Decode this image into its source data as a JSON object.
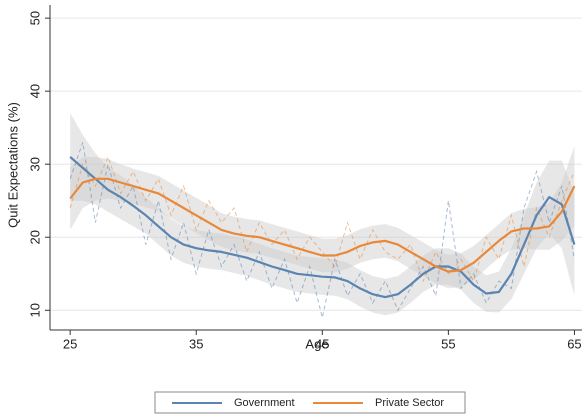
{
  "chart_data": {
    "type": "line",
    "xlabel": "Age",
    "ylabel": "Quit Expectations (%)",
    "x": [
      25,
      26,
      27,
      28,
      29,
      30,
      31,
      32,
      33,
      34,
      35,
      36,
      37,
      38,
      39,
      40,
      41,
      42,
      43,
      44,
      45,
      46,
      47,
      48,
      49,
      50,
      51,
      52,
      53,
      54,
      55,
      56,
      57,
      58,
      59,
      60,
      61,
      62,
      63,
      64,
      65
    ],
    "xlim": [
      23.4,
      65.6
    ],
    "xticks": [
      25,
      35,
      45,
      55,
      65
    ],
    "ylim": [
      7.3,
      51.8
    ],
    "yticks": [
      10,
      20,
      30,
      40,
      50
    ],
    "grid": true,
    "legend": "bottom",
    "band_color": "#c9c9c9",
    "series": [
      {
        "name": "Government",
        "color": "#5b84b1",
        "values": [
          31,
          29.5,
          28,
          26.5,
          25.5,
          24.3,
          23,
          21.5,
          20,
          19,
          18.5,
          18.2,
          18,
          17.6,
          17.2,
          16.6,
          16,
          15.5,
          15,
          14.8,
          14.6,
          14.5,
          14,
          13,
          12.2,
          11.8,
          12.2,
          13.5,
          15,
          16,
          16,
          15.3,
          13.5,
          12.3,
          12.5,
          15,
          19,
          23,
          25.5,
          24.5,
          19
        ],
        "lower": [
          25,
          25,
          24.5,
          23.5,
          22.5,
          21.5,
          20.5,
          19,
          17.5,
          16.5,
          16,
          15.7,
          15.5,
          15.1,
          14.7,
          14.1,
          13.5,
          13,
          12.5,
          12.3,
          12.1,
          12,
          11.5,
          10.5,
          9.7,
          9.3,
          9.7,
          11,
          12.5,
          13.5,
          13.5,
          12.8,
          11,
          9.8,
          9.7,
          11.5,
          15,
          18.5,
          20.5,
          18.5,
          12
        ],
        "upper": [
          37,
          34,
          31.5,
          29.5,
          28.5,
          27.1,
          25.5,
          24,
          22.5,
          21.5,
          21,
          20.7,
          20.5,
          20.1,
          19.7,
          19.1,
          18.5,
          18,
          17.5,
          17.3,
          17.1,
          17,
          16.5,
          15.5,
          14.7,
          14.3,
          14.7,
          16,
          17.5,
          18.5,
          18.5,
          17.8,
          16,
          14.8,
          15.3,
          18.5,
          23,
          27.5,
          30.5,
          30.5,
          26
        ],
        "raw": [
          28,
          33,
          22,
          30,
          24,
          27,
          19,
          25,
          17,
          22,
          15,
          21,
          16,
          19,
          14,
          18,
          13,
          17,
          11,
          16,
          9,
          17,
          12,
          15,
          11,
          14,
          10,
          13,
          16,
          12,
          25,
          13,
          15,
          11,
          14,
          13,
          24,
          29,
          22,
          27,
          17
        ]
      },
      {
        "name": "Private Sector",
        "color": "#e8883a",
        "values": [
          25.3,
          27.5,
          28,
          28,
          27.5,
          27,
          26.5,
          26,
          25,
          24,
          23,
          22,
          21,
          20.5,
          20.2,
          20,
          19.5,
          19,
          18.5,
          18,
          17.5,
          17.5,
          18,
          18.8,
          19.3,
          19.5,
          19,
          18,
          17,
          16,
          15.3,
          15.5,
          16.5,
          18,
          19.5,
          20.8,
          21.2,
          21.2,
          21.5,
          23.5,
          27
        ],
        "lower": [
          21,
          24,
          25,
          25.3,
          25,
          24.6,
          24.1,
          23.6,
          22.6,
          21.6,
          20.6,
          19.6,
          18.7,
          18.2,
          17.9,
          17.7,
          17.2,
          16.7,
          16.2,
          15.7,
          15.2,
          15.2,
          15.7,
          16.5,
          17,
          17.2,
          16.7,
          15.7,
          14.7,
          13.7,
          13,
          13.2,
          14.2,
          15.7,
          17.2,
          18.3,
          18.5,
          18.3,
          18.3,
          19.5,
          21.5
        ],
        "upper": [
          29.6,
          31,
          31,
          30.7,
          30,
          29.4,
          28.9,
          28.4,
          27.4,
          26.4,
          25.4,
          24.4,
          23.3,
          22.8,
          22.5,
          22.3,
          21.8,
          21.3,
          20.8,
          20.3,
          19.8,
          19.8,
          20.3,
          21.1,
          21.6,
          21.8,
          21.3,
          20.3,
          19.3,
          18.3,
          17.6,
          17.8,
          18.8,
          20.3,
          21.8,
          23.3,
          23.9,
          24.1,
          24.7,
          27.5,
          32.5
        ],
        "raw": [
          24,
          30,
          27,
          31,
          26,
          29,
          25,
          28,
          23,
          27,
          21,
          25,
          22,
          24,
          18,
          22,
          19,
          21,
          17,
          20,
          18,
          16,
          22,
          17,
          21,
          18,
          17,
          19,
          14,
          18,
          15,
          17,
          14,
          20,
          17,
          23,
          16,
          24,
          20,
          25,
          29
        ]
      }
    ]
  }
}
